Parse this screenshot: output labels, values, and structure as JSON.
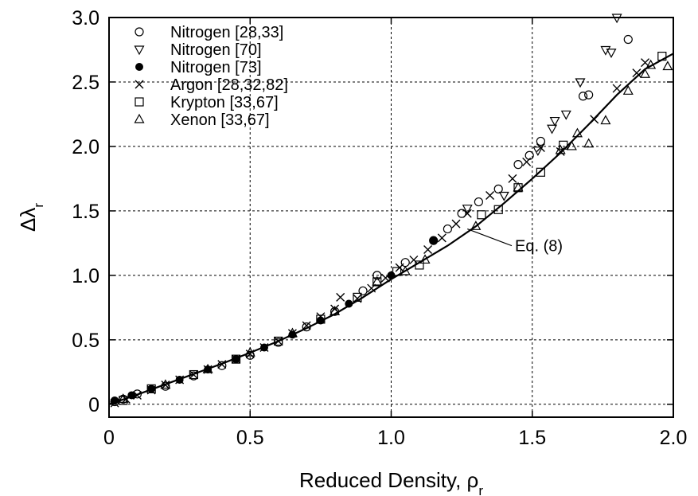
{
  "chart_data": {
    "type": "scatter",
    "title": "",
    "xlabel": "Reduced Density, ρ",
    "xlabel_sub": "r",
    "ylabel": "Δλ",
    "ylabel_sub": "r",
    "xlim": [
      0,
      2.0
    ],
    "ylim": [
      -0.1,
      3.0
    ],
    "xticks": [
      "0",
      "0.5",
      "1.0",
      "1.5",
      "2.0"
    ],
    "xtick_values": [
      0,
      0.5,
      1.0,
      1.5,
      2.0
    ],
    "yticks": [
      "0",
      "0.5",
      "1.0",
      "1.5",
      "2.0",
      "2.5",
      "3.0"
    ],
    "ytick_values": [
      0,
      0.5,
      1.0,
      1.5,
      2.0,
      2.5,
      3.0
    ],
    "grid": true,
    "legend_position": "top-left",
    "series": [
      {
        "name": "Nitrogen [28,33]",
        "marker": "circle-open",
        "points": [
          [
            0.02,
            0.02
          ],
          [
            0.05,
            0.04
          ],
          [
            0.1,
            0.08
          ],
          [
            0.2,
            0.14
          ],
          [
            0.3,
            0.22
          ],
          [
            0.4,
            0.3
          ],
          [
            0.5,
            0.38
          ],
          [
            0.6,
            0.48
          ],
          [
            0.7,
            0.6
          ],
          [
            0.8,
            0.72
          ],
          [
            0.9,
            0.88
          ],
          [
            0.95,
            1.0
          ],
          [
            1.05,
            1.1
          ],
          [
            1.15,
            1.27
          ],
          [
            1.2,
            1.36
          ],
          [
            1.25,
            1.48
          ],
          [
            1.31,
            1.57
          ],
          [
            1.38,
            1.67
          ],
          [
            1.45,
            1.86
          ],
          [
            1.49,
            1.93
          ],
          [
            1.53,
            2.04
          ],
          [
            1.68,
            2.39
          ],
          [
            1.7,
            2.4
          ],
          [
            1.84,
            2.83
          ]
        ]
      },
      {
        "name": "Nitrogen [70]",
        "marker": "triangle-down",
        "points": [
          [
            1.27,
            1.52
          ],
          [
            1.4,
            1.62
          ],
          [
            1.52,
            1.97
          ],
          [
            1.57,
            2.14
          ],
          [
            1.58,
            2.2
          ],
          [
            1.62,
            2.25
          ],
          [
            1.67,
            2.5
          ],
          [
            1.8,
            3.0
          ],
          [
            1.76,
            2.75
          ],
          [
            1.78,
            2.73
          ]
        ]
      },
      {
        "name": "Nitrogen [73]",
        "marker": "circle-filled",
        "points": [
          [
            0.02,
            0.03
          ],
          [
            0.08,
            0.07
          ],
          [
            0.15,
            0.12
          ],
          [
            0.25,
            0.19
          ],
          [
            0.35,
            0.27
          ],
          [
            0.45,
            0.35
          ],
          [
            0.55,
            0.44
          ],
          [
            0.65,
            0.54
          ],
          [
            0.75,
            0.65
          ],
          [
            0.85,
            0.78
          ],
          [
            1.0,
            1.0
          ],
          [
            1.15,
            1.27
          ]
        ]
      },
      {
        "name": "Argon [28,32,82]",
        "marker": "cross",
        "points": [
          [
            0.02,
            0.01
          ],
          [
            0.06,
            0.04
          ],
          [
            0.1,
            0.07
          ],
          [
            0.15,
            0.11
          ],
          [
            0.2,
            0.15
          ],
          [
            0.25,
            0.19
          ],
          [
            0.3,
            0.23
          ],
          [
            0.35,
            0.27
          ],
          [
            0.4,
            0.31
          ],
          [
            0.45,
            0.35
          ],
          [
            0.5,
            0.39
          ],
          [
            0.55,
            0.44
          ],
          [
            0.6,
            0.49
          ],
          [
            0.65,
            0.55
          ],
          [
            0.7,
            0.61
          ],
          [
            0.75,
            0.68
          ],
          [
            0.8,
            0.74
          ],
          [
            0.82,
            0.83
          ],
          [
            0.88,
            0.82
          ],
          [
            0.93,
            0.9
          ],
          [
            0.98,
            0.98
          ],
          [
            1.03,
            1.06
          ],
          [
            1.08,
            1.12
          ],
          [
            1.13,
            1.2
          ],
          [
            1.18,
            1.29
          ],
          [
            1.23,
            1.4
          ],
          [
            1.27,
            1.48
          ],
          [
            1.35,
            1.62
          ],
          [
            1.43,
            1.75
          ],
          [
            1.48,
            1.88
          ],
          [
            1.53,
            1.99
          ],
          [
            1.6,
            1.96
          ],
          [
            1.72,
            2.21
          ],
          [
            1.8,
            2.45
          ],
          [
            1.87,
            2.57
          ],
          [
            1.9,
            2.65
          ]
        ]
      },
      {
        "name": "Krypton [33,67]",
        "marker": "square-open",
        "points": [
          [
            0.05,
            0.03
          ],
          [
            0.15,
            0.12
          ],
          [
            0.3,
            0.23
          ],
          [
            0.45,
            0.35
          ],
          [
            0.6,
            0.49
          ],
          [
            0.75,
            0.66
          ],
          [
            0.88,
            0.83
          ],
          [
            0.95,
            0.95
          ],
          [
            1.02,
            1.03
          ],
          [
            1.1,
            1.08
          ],
          [
            1.32,
            1.47
          ],
          [
            1.38,
            1.51
          ],
          [
            1.45,
            1.68
          ],
          [
            1.53,
            1.8
          ],
          [
            1.61,
            2.01
          ],
          [
            1.96,
            2.7
          ]
        ]
      },
      {
        "name": "Xenon [33,67]",
        "marker": "triangle-up",
        "points": [
          [
            0.05,
            0.04
          ],
          [
            0.2,
            0.15
          ],
          [
            0.35,
            0.27
          ],
          [
            0.5,
            0.4
          ],
          [
            0.65,
            0.55
          ],
          [
            0.8,
            0.72
          ],
          [
            0.95,
            0.95
          ],
          [
            1.05,
            1.03
          ],
          [
            1.12,
            1.12
          ],
          [
            1.3,
            1.38
          ],
          [
            1.45,
            1.68
          ],
          [
            1.6,
            1.97
          ],
          [
            1.64,
            2.0
          ],
          [
            1.66,
            2.1
          ],
          [
            1.7,
            2.02
          ],
          [
            1.76,
            2.2
          ],
          [
            1.84,
            2.43
          ],
          [
            1.9,
            2.56
          ],
          [
            1.92,
            2.63
          ],
          [
            1.98,
            2.62
          ]
        ]
      }
    ],
    "curve": {
      "name": "Eq. (8)",
      "points": [
        [
          0,
          0
        ],
        [
          0.1,
          0.075
        ],
        [
          0.2,
          0.155
        ],
        [
          0.3,
          0.235
        ],
        [
          0.4,
          0.315
        ],
        [
          0.5,
          0.4
        ],
        [
          0.6,
          0.49
        ],
        [
          0.7,
          0.59
        ],
        [
          0.8,
          0.7
        ],
        [
          0.9,
          0.83
        ],
        [
          1.0,
          0.97
        ],
        [
          1.1,
          1.1
        ],
        [
          1.2,
          1.23
        ],
        [
          1.3,
          1.38
        ],
        [
          1.4,
          1.56
        ],
        [
          1.5,
          1.75
        ],
        [
          1.6,
          1.95
        ],
        [
          1.7,
          2.17
        ],
        [
          1.8,
          2.4
        ],
        [
          1.9,
          2.6
        ],
        [
          2.0,
          2.72
        ]
      ]
    },
    "annotation": {
      "text": "Eq. (8)",
      "x": 1.45,
      "y": 1.23,
      "arrow_to": [
        1.27,
        1.36
      ]
    }
  }
}
